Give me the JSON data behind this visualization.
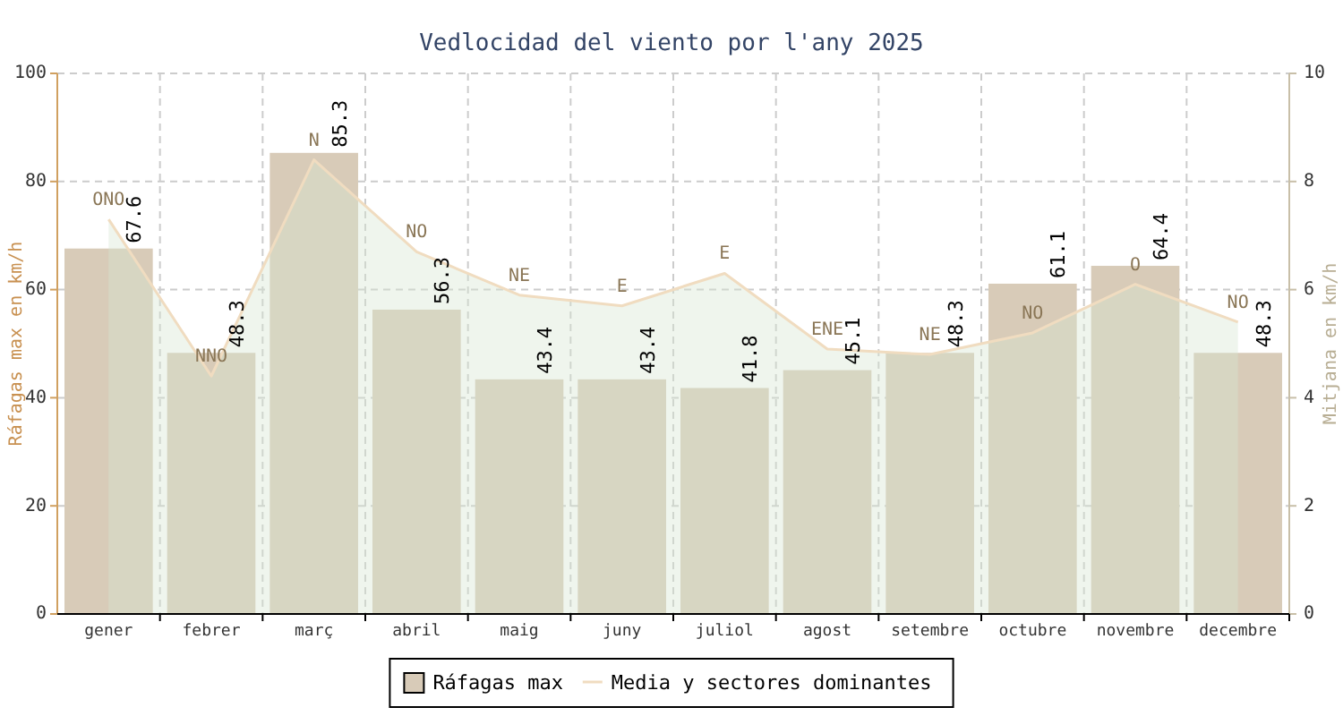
{
  "chart_data": {
    "type": "bar",
    "title": "Vedlocidad del viento por l'any 2025",
    "ylabel": "Ráfagas max en km/h",
    "y2label": "Mitjana en km/h",
    "categories": [
      "gener",
      "febrer",
      "març",
      "abril",
      "maig",
      "juny",
      "juliol",
      "agost",
      "setembre",
      "octubre",
      "novembre",
      "decembre"
    ],
    "series": [
      {
        "name": "Ráfagas max",
        "color": "#d8cbb8",
        "values": [
          67.6,
          48.3,
          85.3,
          56.3,
          43.4,
          43.4,
          41.8,
          45.1,
          48.3,
          61.1,
          64.4,
          48.3
        ],
        "value_labels": [
          "67.6",
          "48.3",
          "85.3",
          "56.3",
          "43.4",
          "43.4",
          "41.8",
          "45.1",
          "48.3",
          "61.1",
          "64.4",
          "48.3"
        ]
      },
      {
        "name": "Media y sectores dominantes",
        "type": "area",
        "axis": "y2",
        "color": "#f0dcc0",
        "values": [
          7.3,
          4.4,
          8.4,
          6.7,
          5.9,
          5.7,
          6.3,
          4.9,
          4.8,
          5.2,
          6.1,
          5.4
        ],
        "value_labels": [
          "ONO",
          "NNO",
          "N",
          "NO",
          "NE",
          "E",
          "E",
          "ENE",
          "NE",
          "NO",
          "O",
          "NO"
        ]
      }
    ],
    "ylim": [
      0,
      100
    ],
    "yticks": [
      0,
      20,
      40,
      60,
      80,
      100
    ],
    "y2lim": [
      0,
      10
    ],
    "y2ticks": [
      0,
      2,
      4,
      6,
      8,
      10
    ],
    "grid": true,
    "legend": "bottom"
  }
}
